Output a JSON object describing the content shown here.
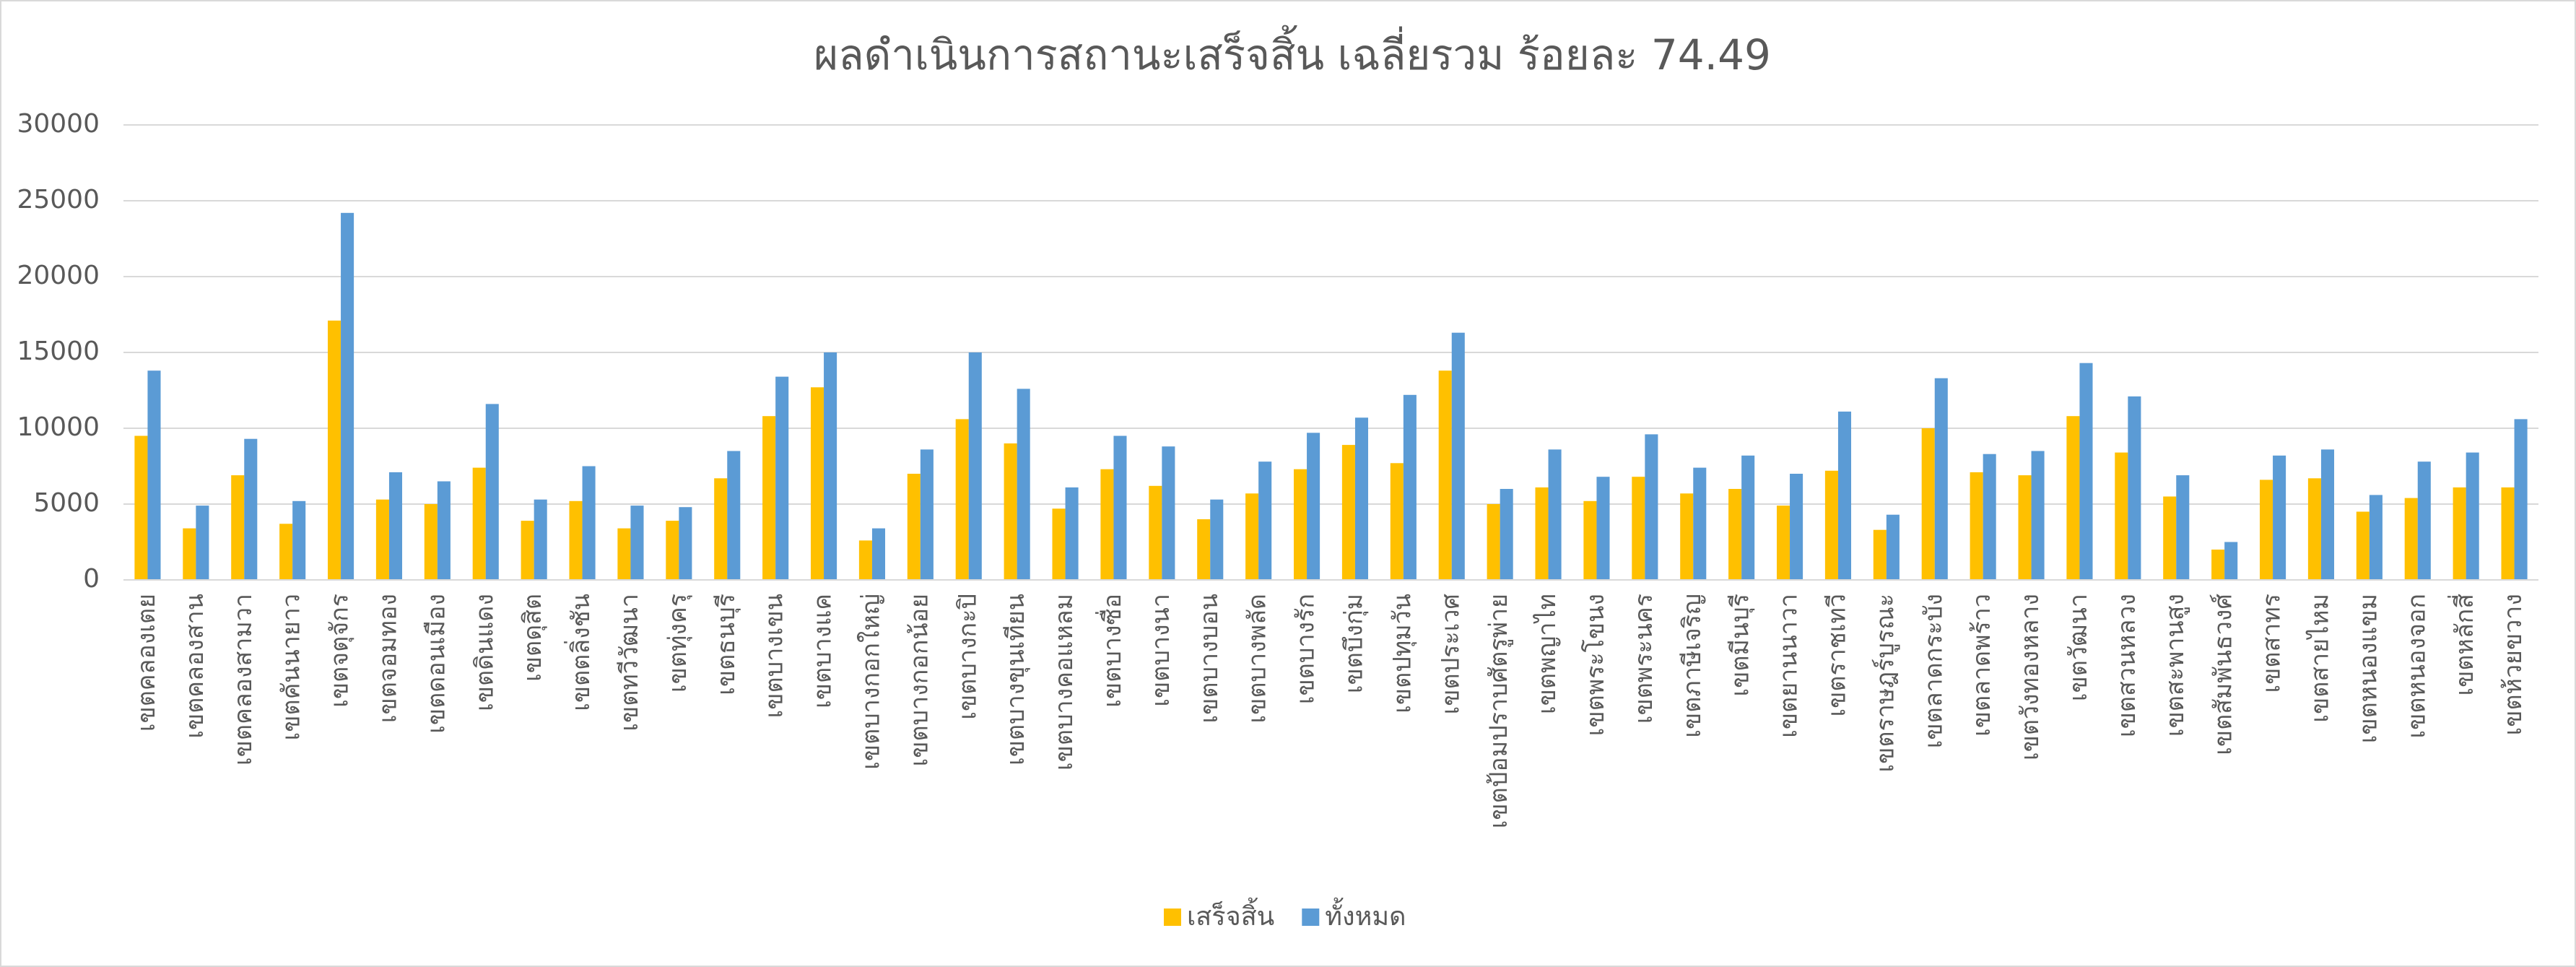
{
  "chart_data": {
    "type": "bar",
    "title": "ผลดำเนินการสถานะเสร็จสิ้น เฉลี่ยรวม ร้อยละ 74.49",
    "categories": [
      "เขตคลองเตย",
      "เขตคลองสาน",
      "เขตคลองสามวา",
      "เขตคันนายาว",
      "เขตจตุจักร",
      "เขตจอมทอง",
      "เขตดอนเมือง",
      "เขตดินแดง",
      "เขตดุสิต",
      "เขตตลิ่งชัน",
      "เขตทวีวัฒนา",
      "เขตทุ่งครุ",
      "เขตธนบุรี",
      "เขตบางเขน",
      "เขตบางแค",
      "เขตบางกอกใหญ่",
      "เขตบางกอกน้อย",
      "เขตบางกะปิ",
      "เขตบางขุนเทียน",
      "เขตบางคอแหลม",
      "เขตบางซื่อ",
      "เขตบางนา",
      "เขตบางบอน",
      "เขตบางพลัด",
      "เขตบางรัก",
      "เขตบึงกุ่ม",
      "เขตปทุมวัน",
      "เขตประเวศ",
      "เขตป้อมปราบศัตรูพ่าย",
      "เขตพญาไท",
      "เขตพระโขนง",
      "เขตพระนคร",
      "เขตภาษีเจริญ",
      "เขตมีนบุรี",
      "เขตยานนาวา",
      "เขตราชเทวี",
      "เขตราษฎร์บูรณะ",
      "เขตลาดกระบัง",
      "เขตลาดพร้าว",
      "เขตวังทองหลาง",
      "เขตวัฒนา",
      "เขตสวนหลวง",
      "เขตสะพานสูง",
      "เขตสัมพันธวงศ์",
      "เขตสาทร",
      "เขตสายไหม",
      "เขตหนองแขม",
      "เขตหนองจอก",
      "เขตหลักสี่",
      "เขตห้วยขวาง"
    ],
    "series": [
      {
        "name": "เสร็จสิ้น",
        "color": "#FFC000",
        "values": [
          9500,
          3400,
          6900,
          3700,
          17100,
          5300,
          5000,
          7400,
          3900,
          5200,
          3400,
          3900,
          6700,
          10800,
          12700,
          2600,
          7000,
          10600,
          9000,
          4700,
          7300,
          6200,
          4000,
          5700,
          7300,
          8900,
          7700,
          13800,
          5000,
          6100,
          5200,
          6800,
          5700,
          6000,
          4900,
          7200,
          3300,
          10000,
          7100,
          6900,
          10800,
          8400,
          5500,
          2000,
          6600,
          6700,
          4500,
          5400,
          6100,
          6100
        ]
      },
      {
        "name": "ทั้งหมด",
        "color": "#5B9BD5",
        "values": [
          13800,
          4900,
          9300,
          5200,
          24200,
          7100,
          6500,
          11600,
          5300,
          7500,
          4900,
          4800,
          8500,
          13400,
          15000,
          3400,
          8600,
          15000,
          12600,
          6100,
          9500,
          8800,
          5300,
          7800,
          9700,
          10700,
          12200,
          16300,
          6000,
          8600,
          6800,
          9600,
          7400,
          8200,
          7000,
          11100,
          4300,
          13300,
          8300,
          8500,
          14300,
          12100,
          6900,
          2500,
          8200,
          8600,
          5600,
          7800,
          8400,
          10600
        ]
      }
    ],
    "ylim": [
      0,
      30000
    ],
    "yticks": [
      0,
      5000,
      10000,
      15000,
      20000,
      25000,
      30000
    ],
    "grid": true,
    "legend": "bottom"
  }
}
